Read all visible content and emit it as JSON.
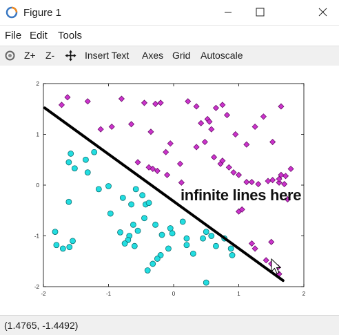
{
  "window": {
    "title": "Figure 1"
  },
  "menu": {
    "file": "File",
    "edit": "Edit",
    "tools": "Tools"
  },
  "toolbar": {
    "zoom_in": "Z+",
    "zoom_out": "Z-",
    "insert_text": "Insert Text",
    "axes": "Axes",
    "grid": "Grid",
    "autoscale": "Autoscale"
  },
  "status": {
    "coords": "(1.4765, -1.4492)"
  },
  "annotation": "infinite lines here",
  "colors": {
    "class_a": "#22dde0",
    "class_b": "#cc33cc",
    "line": "#000000"
  },
  "chart_data": {
    "type": "scatter",
    "title": "",
    "xlabel": "",
    "ylabel": "",
    "xlim": [
      -2,
      2
    ],
    "ylim": [
      -2,
      2
    ],
    "x_ticks": [
      "-2",
      "-1",
      "0",
      "1",
      "2"
    ],
    "y_ticks": [
      "2",
      "1",
      "0",
      "-1",
      "-2"
    ],
    "grid": false,
    "series": [
      {
        "marker": "circle",
        "points": [
          [
            -1.58,
            0.62
          ],
          [
            -1.61,
            0.45
          ],
          [
            -1.52,
            0.33
          ],
          [
            -1.35,
            0.5
          ],
          [
            -1.32,
            0.25
          ],
          [
            -1.22,
            0.65
          ],
          [
            -1.15,
            -0.08
          ],
          [
            -1.0,
            -0.02
          ],
          [
            -1.61,
            -0.33
          ],
          [
            -0.97,
            -0.56
          ],
          [
            -0.65,
            -0.38
          ],
          [
            -0.78,
            -0.25
          ],
          [
            -0.58,
            -0.08
          ],
          [
            -0.48,
            -0.2
          ],
          [
            -0.43,
            -0.38
          ],
          [
            -0.38,
            -0.35
          ],
          [
            -0.55,
            -0.9
          ],
          [
            -0.68,
            -1.0
          ],
          [
            -0.7,
            -1.08
          ],
          [
            -0.75,
            -1.15
          ],
          [
            -0.82,
            -0.93
          ],
          [
            -0.6,
            -1.2
          ],
          [
            -0.45,
            -0.65
          ],
          [
            -0.62,
            -0.78
          ],
          [
            -0.28,
            -0.78
          ],
          [
            -0.18,
            -0.98
          ],
          [
            -0.05,
            -0.85
          ],
          [
            -0.02,
            -0.95
          ],
          [
            -0.08,
            -1.25
          ],
          [
            -0.2,
            -1.38
          ],
          [
            -0.25,
            -1.45
          ],
          [
            -0.32,
            -1.55
          ],
          [
            -0.4,
            -1.68
          ],
          [
            -1.82,
            -0.92
          ],
          [
            -1.8,
            -1.18
          ],
          [
            -1.7,
            -1.25
          ],
          [
            -1.6,
            -1.22
          ],
          [
            -1.55,
            -1.1
          ],
          [
            0.2,
            -1.05
          ],
          [
            0.2,
            -1.18
          ],
          [
            0.3,
            -1.35
          ],
          [
            0.45,
            -1.05
          ],
          [
            0.5,
            -0.92
          ],
          [
            0.58,
            -1.0
          ],
          [
            0.65,
            -1.2
          ],
          [
            0.78,
            -1.05
          ],
          [
            0.88,
            -1.25
          ],
          [
            0.9,
            -1.38
          ],
          [
            0.5,
            -1.92
          ],
          [
            0.14,
            -0.72
          ]
        ]
      },
      {
        "marker": "diamond",
        "points": [
          [
            -1.63,
            1.73
          ],
          [
            -1.72,
            1.58
          ],
          [
            -1.32,
            1.65
          ],
          [
            -1.12,
            1.1
          ],
          [
            -0.95,
            1.15
          ],
          [
            -0.8,
            1.7
          ],
          [
            -0.65,
            1.2
          ],
          [
            -0.45,
            1.62
          ],
          [
            -0.28,
            1.6
          ],
          [
            -0.35,
            1.05
          ],
          [
            -0.2,
            1.62
          ],
          [
            -0.12,
            0.65
          ],
          [
            -0.05,
            0.82
          ],
          [
            0.1,
            0.42
          ],
          [
            0.22,
            1.65
          ],
          [
            0.35,
            1.55
          ],
          [
            0.52,
            1.3
          ],
          [
            0.58,
            1.1
          ],
          [
            0.65,
            1.52
          ],
          [
            0.75,
            1.58
          ],
          [
            0.82,
            1.38
          ],
          [
            0.95,
            1.0
          ],
          [
            1.12,
            0.8
          ],
          [
            1.25,
            1.15
          ],
          [
            1.38,
            1.35
          ],
          [
            1.52,
            0.85
          ],
          [
            1.65,
            1.55
          ],
          [
            1.72,
            0.18
          ],
          [
            1.8,
            0.32
          ],
          [
            -0.55,
            0.45
          ],
          [
            -0.38,
            0.35
          ],
          [
            -0.32,
            0.32
          ],
          [
            -0.25,
            0.28
          ],
          [
            -0.1,
            0.2
          ],
          [
            0.12,
            0.05
          ],
          [
            0.35,
            0.75
          ],
          [
            0.48,
            0.85
          ],
          [
            0.62,
            0.55
          ],
          [
            0.72,
            0.42
          ],
          [
            0.75,
            0.48
          ],
          [
            0.85,
            0.35
          ],
          [
            0.92,
            0.25
          ],
          [
            1.0,
            0.2
          ],
          [
            1.12,
            0.06
          ],
          [
            1.2,
            0.06
          ],
          [
            1.3,
            0.02
          ],
          [
            1.45,
            0.08
          ],
          [
            1.52,
            0.1
          ],
          [
            1.62,
            0.05
          ],
          [
            1.7,
            0.02
          ],
          [
            1.75,
            -0.28
          ],
          [
            1.0,
            -0.52
          ],
          [
            1.05,
            -0.48
          ],
          [
            1.2,
            -1.15
          ],
          [
            1.25,
            -1.25
          ],
          [
            1.5,
            -1.12
          ],
          [
            1.42,
            -1.48
          ],
          [
            1.5,
            -1.55
          ],
          [
            1.6,
            -1.62
          ],
          [
            1.62,
            -1.75
          ],
          [
            0.42,
            1.22
          ],
          [
            0.55,
            1.25
          ],
          [
            1.62,
            0.12
          ],
          [
            1.65,
            0.2
          ]
        ]
      }
    ],
    "line": {
      "x": [
        -1.98,
        1.68
      ],
      "y": [
        1.52,
        -1.88
      ]
    }
  }
}
